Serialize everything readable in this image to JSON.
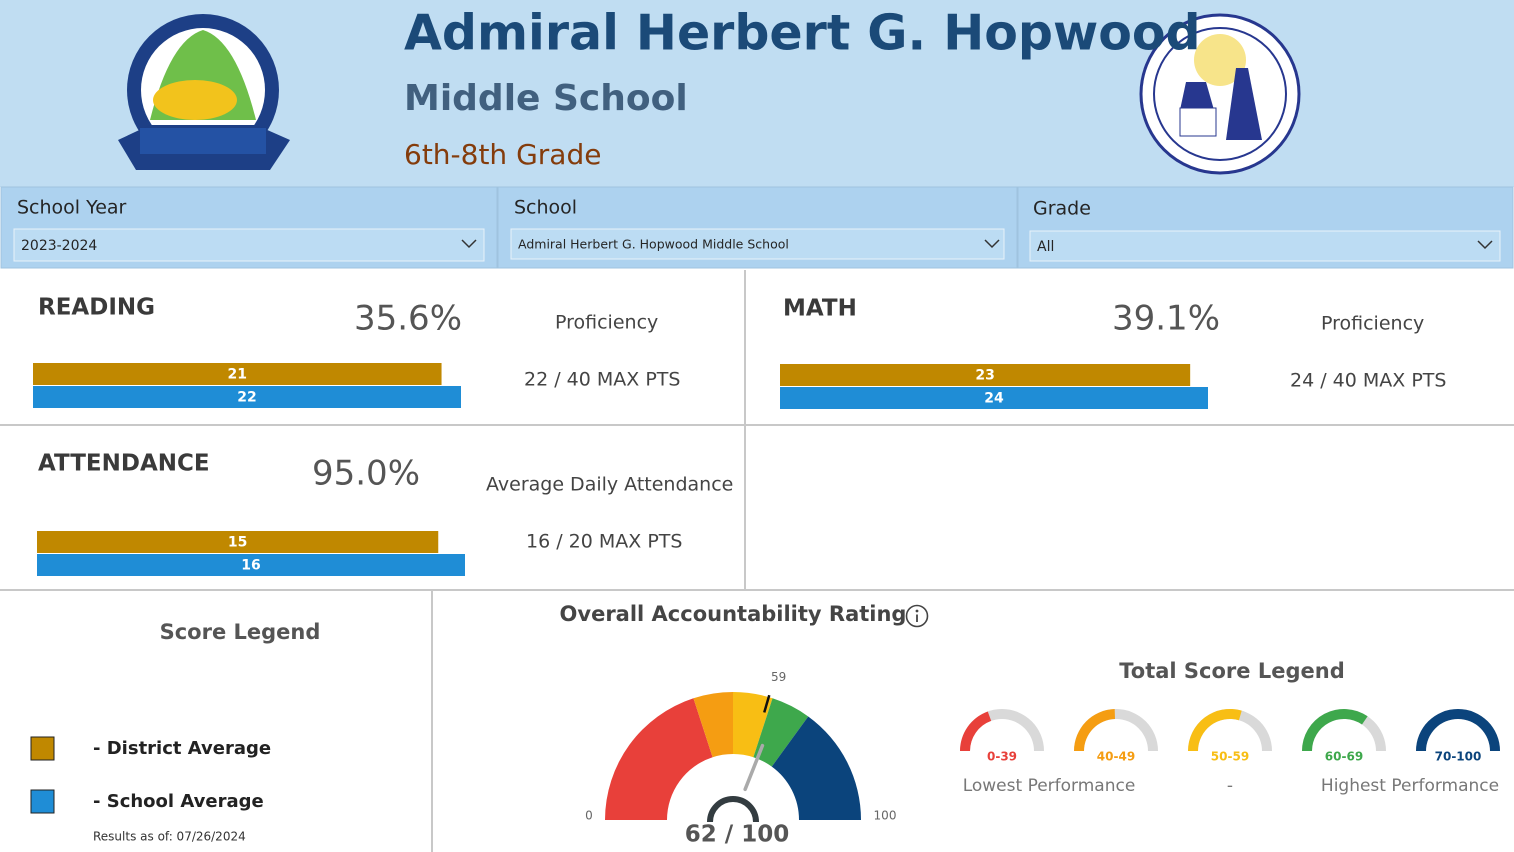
{
  "header": {
    "title": "Admiral Herbert G. Hopwood",
    "subtitle": "Middle School",
    "grades": "6th-8th Grade"
  },
  "filters": [
    {
      "label": "School Year",
      "value": "2023-2024"
    },
    {
      "label": "School",
      "value": "Admiral Herbert G. Hopwood Middle School"
    },
    {
      "label": "Grade",
      "value": "All"
    }
  ],
  "cards": [
    {
      "title": "READING",
      "value": "35.6%",
      "caption": "Proficiency",
      "district": 21,
      "school": 22,
      "points": "22 / 40 MAX PTS"
    },
    {
      "title": "MATH",
      "value": "39.1%",
      "caption": "Proficiency",
      "district": 23,
      "school": 24,
      "points": "24 / 40 MAX PTS"
    },
    {
      "title": "ATTENDANCE",
      "value": "95.0%",
      "caption": "Average Daily Attendance",
      "district": 15,
      "school": 16,
      "points": "16 / 20 MAX PTS"
    }
  ],
  "score_legend": {
    "title": "Score Legend",
    "items": [
      {
        "label": "- District Average",
        "color": "#c08800"
      },
      {
        "label": "- School Average",
        "color": "#1f8dd6"
      }
    ],
    "note": "Results as of: 07/26/2024"
  },
  "rating": {
    "title": "Overall Accountability Rating",
    "min": 0,
    "max": 100,
    "target": 59,
    "score": 62,
    "score_label": "62 / 100"
  },
  "total_score_legend": {
    "title": "Total Score Legend",
    "ranges": [
      {
        "label": "0-39",
        "from": 0,
        "to": 39,
        "color": "#e8403a"
      },
      {
        "label": "40-49",
        "from": 40,
        "to": 49,
        "color": "#f59d12"
      },
      {
        "label": "50-59",
        "from": 50,
        "to": 59,
        "color": "#f8be14"
      },
      {
        "label": "60-69",
        "from": 60,
        "to": 69,
        "color": "#3ea84c"
      },
      {
        "label": "70-100",
        "from": 70,
        "to": 100,
        "color": "#0b447c"
      }
    ],
    "captions": [
      "Lowest Performance",
      "-",
      "Highest Performance"
    ]
  }
}
